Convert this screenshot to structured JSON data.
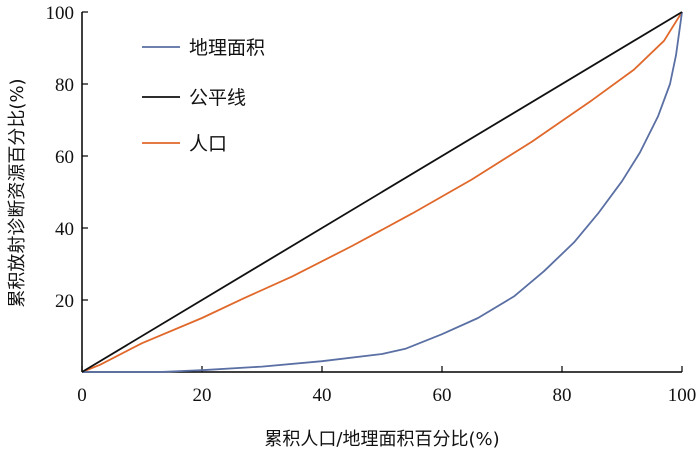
{
  "chart_data": {
    "type": "line",
    "xlabel": "累积人口/地理面积百分比(%)",
    "ylabel": "累积放射诊断资源百分比(%)",
    "xlim": [
      0,
      100
    ],
    "ylim": [
      0,
      100
    ],
    "xticks": [
      0,
      20,
      40,
      60,
      80,
      100
    ],
    "yticks": [
      20,
      40,
      60,
      80,
      100
    ],
    "grid": false,
    "legend_position": "top-left",
    "series": [
      {
        "name": "地理面积",
        "color": "#5a6fa3",
        "x": [
          0,
          13,
          20,
          30,
          40,
          50,
          54,
          60,
          66,
          72,
          77,
          82,
          86,
          90,
          93,
          96,
          98,
          99,
          100
        ],
        "y": [
          0,
          0,
          0.5,
          1.5,
          3,
          5,
          6.5,
          10.5,
          15,
          21,
          28,
          36,
          44,
          53,
          61,
          71,
          80,
          88,
          100
        ]
      },
      {
        "name": "公平线",
        "color": "#111111",
        "x": [
          0,
          100
        ],
        "y": [
          0,
          100
        ]
      },
      {
        "name": "人口",
        "color": "#e0682a",
        "x": [
          0,
          3,
          10,
          20,
          27,
          35,
          45,
          55,
          65,
          75,
          85,
          92,
          97,
          100
        ],
        "y": [
          0,
          2,
          8,
          15,
          20.5,
          26.5,
          35,
          44,
          53.5,
          64,
          75.5,
          84,
          92,
          100
        ]
      }
    ]
  }
}
